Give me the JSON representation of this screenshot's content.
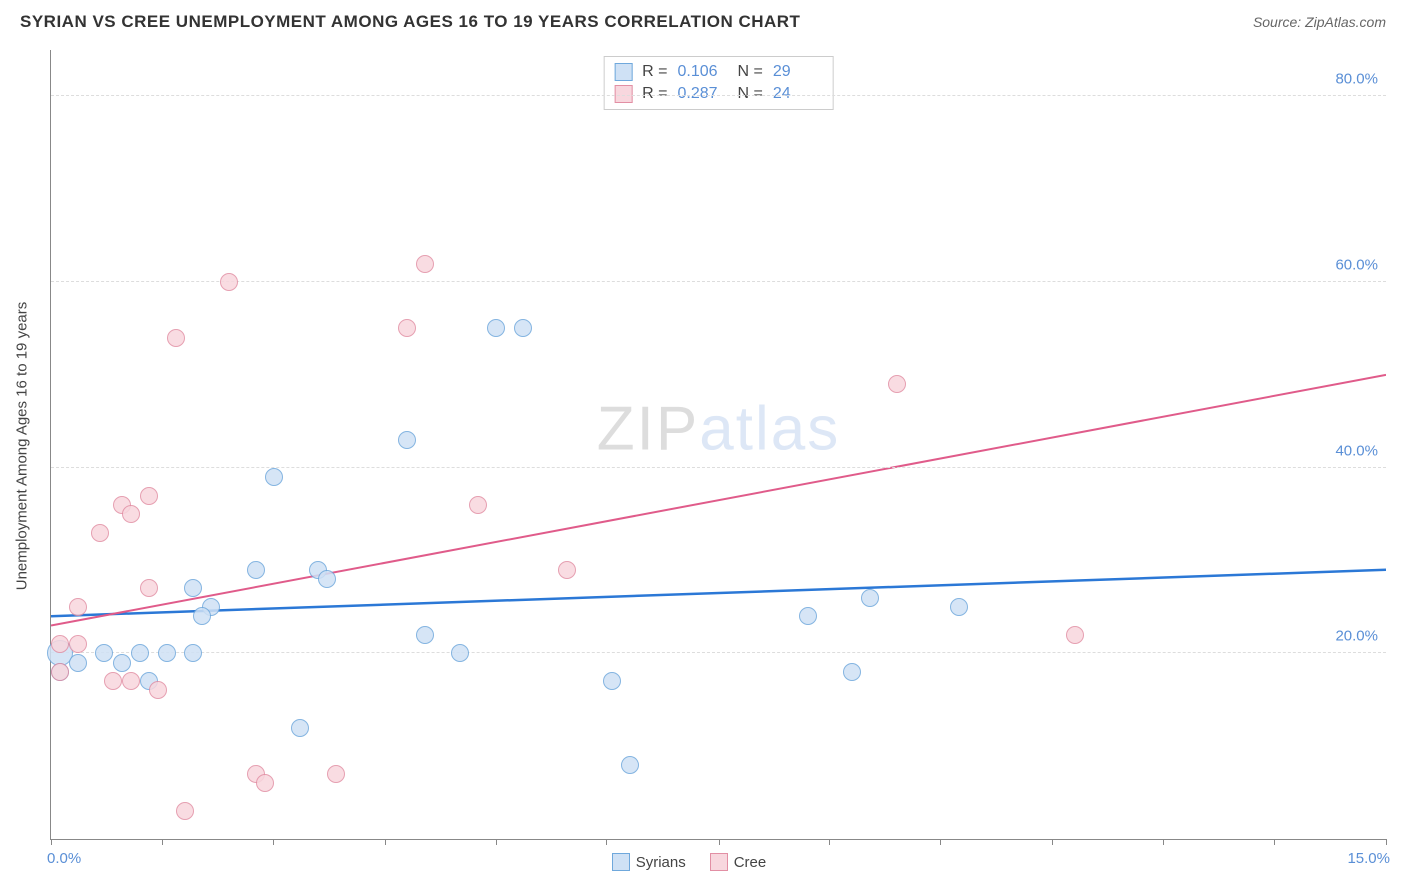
{
  "header": {
    "title": "SYRIAN VS CREE UNEMPLOYMENT AMONG AGES 16 TO 19 YEARS CORRELATION CHART",
    "source": "Source: ZipAtlas.com"
  },
  "chart": {
    "type": "scatter",
    "ylabel": "Unemployment Among Ages 16 to 19 years",
    "xlim": [
      0,
      15
    ],
    "ylim": [
      0,
      85
    ],
    "xtick_labels": {
      "min": "0.0%",
      "max": "15.0%"
    },
    "xtick_positions_pct": [
      0,
      8.3,
      16.6,
      25,
      33.3,
      41.6,
      50,
      58.3,
      66.6,
      75,
      83.3,
      91.6,
      100
    ],
    "yticks": [
      {
        "value": 20,
        "label": "20.0%"
      },
      {
        "value": 40,
        "label": "40.0%"
      },
      {
        "value": 60,
        "label": "60.0%"
      },
      {
        "value": 80,
        "label": "80.0%"
      }
    ],
    "grid_color": "#dddddd",
    "axis_color": "#888888",
    "background_color": "#ffffff",
    "label_color": "#5a8fd6",
    "marker_radius": 9,
    "marker_stroke_width": 1.5,
    "series": [
      {
        "name": "Syrians",
        "fill": "#cfe1f5",
        "stroke": "#6fa8dc",
        "r_value": "0.106",
        "n_value": "29",
        "trend": {
          "y_at_xmin": 24,
          "y_at_xmax": 29,
          "color": "#2b78d6",
          "width": 2.5
        },
        "points": [
          {
            "x": 0.1,
            "y": 20,
            "r": 13
          },
          {
            "x": 0.1,
            "y": 18
          },
          {
            "x": 0.3,
            "y": 19
          },
          {
            "x": 0.6,
            "y": 20
          },
          {
            "x": 0.8,
            "y": 19
          },
          {
            "x": 1.0,
            "y": 20
          },
          {
            "x": 1.1,
            "y": 17
          },
          {
            "x": 1.3,
            "y": 20
          },
          {
            "x": 1.6,
            "y": 20
          },
          {
            "x": 1.6,
            "y": 27
          },
          {
            "x": 1.8,
            "y": 25
          },
          {
            "x": 1.7,
            "y": 24
          },
          {
            "x": 2.3,
            "y": 29
          },
          {
            "x": 2.5,
            "y": 39
          },
          {
            "x": 2.8,
            "y": 12
          },
          {
            "x": 3.0,
            "y": 29
          },
          {
            "x": 3.1,
            "y": 28
          },
          {
            "x": 4.0,
            "y": 43
          },
          {
            "x": 4.2,
            "y": 22
          },
          {
            "x": 4.6,
            "y": 20
          },
          {
            "x": 5.0,
            "y": 55
          },
          {
            "x": 5.3,
            "y": 55
          },
          {
            "x": 6.3,
            "y": 17
          },
          {
            "x": 6.5,
            "y": 8
          },
          {
            "x": 8.5,
            "y": 24
          },
          {
            "x": 9.0,
            "y": 18
          },
          {
            "x": 9.2,
            "y": 26
          },
          {
            "x": 10.2,
            "y": 25
          }
        ]
      },
      {
        "name": "Cree",
        "fill": "#f8d7de",
        "stroke": "#e28fa4",
        "r_value": "0.287",
        "n_value": "24",
        "trend": {
          "y_at_xmin": 23,
          "y_at_xmax": 50,
          "color": "#e05b8a",
          "width": 2
        },
        "points": [
          {
            "x": 0.1,
            "y": 21
          },
          {
            "x": 0.1,
            "y": 18
          },
          {
            "x": 0.3,
            "y": 21
          },
          {
            "x": 0.3,
            "y": 25
          },
          {
            "x": 0.55,
            "y": 33
          },
          {
            "x": 0.7,
            "y": 17
          },
          {
            "x": 0.8,
            "y": 36
          },
          {
            "x": 0.9,
            "y": 17
          },
          {
            "x": 0.9,
            "y": 35
          },
          {
            "x": 1.1,
            "y": 37
          },
          {
            "x": 1.1,
            "y": 27
          },
          {
            "x": 1.2,
            "y": 16
          },
          {
            "x": 1.4,
            "y": 54
          },
          {
            "x": 1.5,
            "y": 3
          },
          {
            "x": 2.0,
            "y": 60
          },
          {
            "x": 2.3,
            "y": 7
          },
          {
            "x": 2.4,
            "y": 6
          },
          {
            "x": 3.2,
            "y": 7
          },
          {
            "x": 4.0,
            "y": 55
          },
          {
            "x": 4.2,
            "y": 62
          },
          {
            "x": 4.8,
            "y": 36
          },
          {
            "x": 5.8,
            "y": 29
          },
          {
            "x": 9.5,
            "y": 49
          },
          {
            "x": 11.5,
            "y": 22
          }
        ]
      }
    ],
    "legend_bottom": [
      {
        "label": "Syrians",
        "fill": "#cfe1f5",
        "stroke": "#6fa8dc"
      },
      {
        "label": "Cree",
        "fill": "#f8d7de",
        "stroke": "#e28fa4"
      }
    ],
    "watermark": {
      "part1": "ZIP",
      "part2": "atlas"
    }
  }
}
